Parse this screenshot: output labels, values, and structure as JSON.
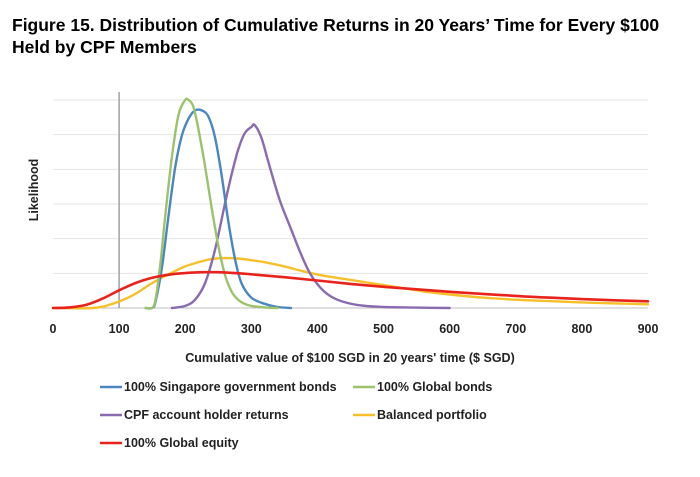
{
  "title_line1": "Figure 15. Distribution of Cumulative Returns in 20 Years’ Time for Every $100",
  "title_line2": "Held by CPF Members",
  "chart_data": {
    "type": "line",
    "title": "Figure 15. Distribution of Cumulative Returns in 20 Years’ Time for Every $100 Held by CPF Members",
    "xlabel": "Cumulative value of $100 SGD in 20 years' time ($ SGD)",
    "ylabel": "Likelihood",
    "xlim": [
      0,
      900
    ],
    "ylim": [
      0,
      1
    ],
    "xticks": [
      0,
      100,
      200,
      300,
      400,
      500,
      600,
      700,
      800,
      900
    ],
    "y_tick_labels_shown": false,
    "grid": "horizontal",
    "reference_line_x": 100,
    "legend_position": "bottom",
    "series": [
      {
        "name": "100% Singapore government bonds",
        "color": "#4a86c0",
        "x": [
          140,
          150,
          155,
          165,
          175,
          185,
          195,
          205,
          215,
          225,
          235,
          245,
          255,
          265,
          275,
          285,
          300,
          320,
          340,
          360
        ],
        "y": [
          0,
          0,
          0.03,
          0.2,
          0.45,
          0.68,
          0.83,
          0.91,
          0.95,
          0.95,
          0.92,
          0.82,
          0.64,
          0.42,
          0.24,
          0.12,
          0.05,
          0.02,
          0.005,
          0
        ]
      },
      {
        "name": "100% Global bonds",
        "color": "#9bc36b",
        "x": [
          140,
          150,
          155,
          162,
          170,
          180,
          190,
          200,
          205,
          212,
          220,
          230,
          240,
          250,
          260,
          270,
          280,
          290,
          300,
          320,
          340
        ],
        "y": [
          0,
          0,
          0.04,
          0.2,
          0.45,
          0.73,
          0.93,
          1.0,
          1.0,
          0.97,
          0.86,
          0.68,
          0.48,
          0.3,
          0.16,
          0.08,
          0.04,
          0.02,
          0.01,
          0.003,
          0
        ]
      },
      {
        "name": "CPF account holder returns",
        "color": "#8a6bb0",
        "x": [
          180,
          200,
          215,
          230,
          245,
          260,
          270,
          280,
          290,
          300,
          305,
          315,
          325,
          335,
          345,
          360,
          375,
          390,
          410,
          430,
          460,
          500,
          550,
          600
        ],
        "y": [
          0,
          0.01,
          0.04,
          0.12,
          0.28,
          0.5,
          0.64,
          0.76,
          0.84,
          0.87,
          0.88,
          0.82,
          0.71,
          0.6,
          0.5,
          0.38,
          0.26,
          0.16,
          0.08,
          0.04,
          0.015,
          0.005,
          0.002,
          0
        ]
      },
      {
        "name": "Balanced portfolio",
        "color": "#f5c02a",
        "x": [
          0,
          60,
          90,
          120,
          150,
          180,
          200,
          220,
          240,
          260,
          280,
          300,
          320,
          350,
          380,
          410,
          440,
          480,
          520,
          560,
          600,
          650,
          700,
          750,
          800,
          850,
          900
        ],
        "y": [
          0,
          0,
          0.02,
          0.06,
          0.12,
          0.17,
          0.2,
          0.22,
          0.235,
          0.24,
          0.238,
          0.23,
          0.22,
          0.2,
          0.175,
          0.155,
          0.14,
          0.12,
          0.1,
          0.08,
          0.065,
          0.05,
          0.04,
          0.033,
          0.027,
          0.022,
          0.018
        ]
      },
      {
        "name": "100% Global equity",
        "color": "#e8231c",
        "x": [
          0,
          25,
          50,
          75,
          100,
          125,
          150,
          175,
          200,
          225,
          250,
          275,
          300,
          350,
          400,
          450,
          500,
          550,
          600,
          650,
          700,
          750,
          800,
          850,
          900
        ],
        "y": [
          0,
          0.003,
          0.015,
          0.045,
          0.085,
          0.12,
          0.145,
          0.16,
          0.168,
          0.172,
          0.172,
          0.168,
          0.162,
          0.148,
          0.132,
          0.116,
          0.102,
          0.09,
          0.078,
          0.068,
          0.058,
          0.05,
          0.043,
          0.037,
          0.032
        ]
      }
    ]
  },
  "legend": [
    {
      "label": "100% Singapore government bonds",
      "color": "#4a86c0"
    },
    {
      "label": "100% Global bonds",
      "color": "#9bc36b"
    },
    {
      "label": "CPF account holder returns",
      "color": "#8a6bb0"
    },
    {
      "label": "Balanced portfolio",
      "color": "#f5c02a"
    },
    {
      "label": "100% Global equity",
      "color": "#e8231c"
    }
  ]
}
